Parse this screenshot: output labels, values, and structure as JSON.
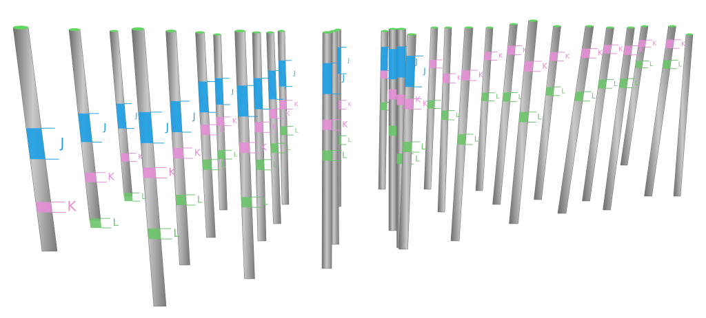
{
  "marker_colors": {
    "J": "#1ea0e6",
    "K": "#e48fd6",
    "L": "#6cc46c"
  },
  "wells": [
    {
      "markers": [
        "J",
        "K"
      ]
    },
    {
      "markers": [
        "J",
        "K",
        "L"
      ]
    },
    {
      "markers": [
        "J",
        "K",
        "L"
      ]
    },
    {
      "markers": [
        "J",
        "K",
        "L"
      ]
    },
    {
      "markers": [
        "J",
        "K",
        "L"
      ]
    },
    {
      "markers": [
        "J",
        "K",
        "L"
      ]
    },
    {
      "markers": [
        "J",
        "K",
        "L"
      ]
    },
    {
      "markers": [
        "J",
        "K",
        "L"
      ]
    },
    {
      "markers": [
        "J",
        "K",
        "L"
      ]
    },
    {
      "markers": [
        "J",
        "K",
        "L"
      ]
    },
    {
      "markers": [
        "J",
        "K",
        "L"
      ]
    },
    {
      "markers": [
        "J",
        "K",
        "L"
      ]
    },
    {
      "markers": []
    },
    {
      "markers": [
        "J",
        "K",
        "L"
      ]
    },
    {
      "markers": [
        "J",
        "K",
        "L"
      ]
    },
    {
      "markers": [
        "J",
        "K",
        "L"
      ]
    },
    {
      "markers": [
        "J",
        "K",
        "L"
      ]
    },
    {
      "markers": [
        "J",
        "K",
        "L"
      ]
    },
    {
      "markers": [
        "K",
        "L"
      ]
    },
    {
      "markers": [
        "K",
        "L"
      ]
    },
    {
      "markers": [
        "K",
        "L"
      ]
    },
    {
      "markers": [
        "K",
        "L"
      ]
    },
    {
      "markers": [
        "K",
        "L"
      ]
    },
    {
      "markers": [
        "K",
        "L"
      ]
    },
    {
      "markers": [
        "K",
        "L"
      ]
    },
    {
      "markers": [
        "K",
        "L"
      ]
    },
    {
      "markers": [
        "K",
        "L"
      ]
    },
    {
      "markers": [
        "K",
        "L"
      ]
    },
    {
      "markers": [
        "K",
        "L"
      ]
    },
    {
      "markers": [
        "K",
        "L"
      ]
    },
    {
      "markers": []
    }
  ]
}
